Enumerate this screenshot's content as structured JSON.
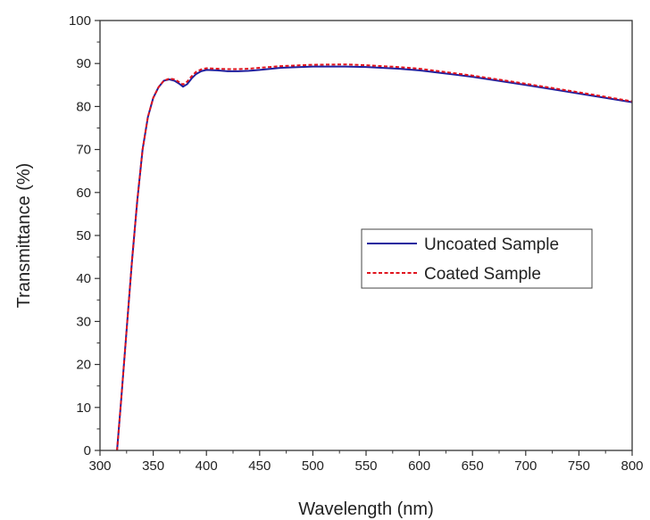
{
  "chart_data": {
    "type": "line",
    "title": "",
    "xlabel": "Wavelength (nm)",
    "ylabel": "Transmittance (%)",
    "xlim": [
      300,
      800
    ],
    "ylim": [
      0,
      100
    ],
    "xticks": [
      300,
      350,
      400,
      450,
      500,
      550,
      600,
      650,
      700,
      750,
      800
    ],
    "yticks": [
      0,
      10,
      20,
      30,
      40,
      50,
      60,
      70,
      80,
      90,
      100
    ],
    "grid": false,
    "legend_position": "center-right",
    "series": [
      {
        "name": "Uncoated Sample",
        "color": "#1f1f9e",
        "style": "solid",
        "x": [
          316,
          320,
          325,
          330,
          335,
          340,
          345,
          350,
          355,
          360,
          365,
          370,
          375,
          378,
          382,
          386,
          390,
          395,
          400,
          410,
          420,
          430,
          440,
          450,
          470,
          500,
          530,
          550,
          580,
          600,
          650,
          700,
          750,
          800
        ],
        "y": [
          0,
          12,
          28,
          44,
          58,
          70,
          77.5,
          82,
          84.5,
          86,
          86.3,
          86,
          85.2,
          84.6,
          85.2,
          86.5,
          87.5,
          88.2,
          88.5,
          88.4,
          88.2,
          88.2,
          88.3,
          88.5,
          89,
          89.3,
          89.3,
          89.2,
          88.8,
          88.4,
          86.9,
          85,
          83,
          81
        ]
      },
      {
        "name": "Coated Sample",
        "color": "#e0141e",
        "style": "dashed",
        "x": [
          316,
          320,
          325,
          330,
          335,
          340,
          345,
          350,
          355,
          360,
          365,
          370,
          375,
          378,
          382,
          386,
          390,
          395,
          400,
          410,
          420,
          430,
          440,
          450,
          470,
          500,
          530,
          550,
          580,
          600,
          650,
          700,
          750,
          800
        ],
        "y": [
          0,
          12,
          28,
          44,
          58,
          70,
          77.5,
          82,
          84.5,
          86,
          86.5,
          86.3,
          85.6,
          85.1,
          85.8,
          87,
          88,
          88.6,
          88.9,
          88.8,
          88.7,
          88.7,
          88.8,
          89,
          89.4,
          89.7,
          89.8,
          89.6,
          89.2,
          88.8,
          87.2,
          85.3,
          83.3,
          81.2
        ]
      }
    ]
  }
}
